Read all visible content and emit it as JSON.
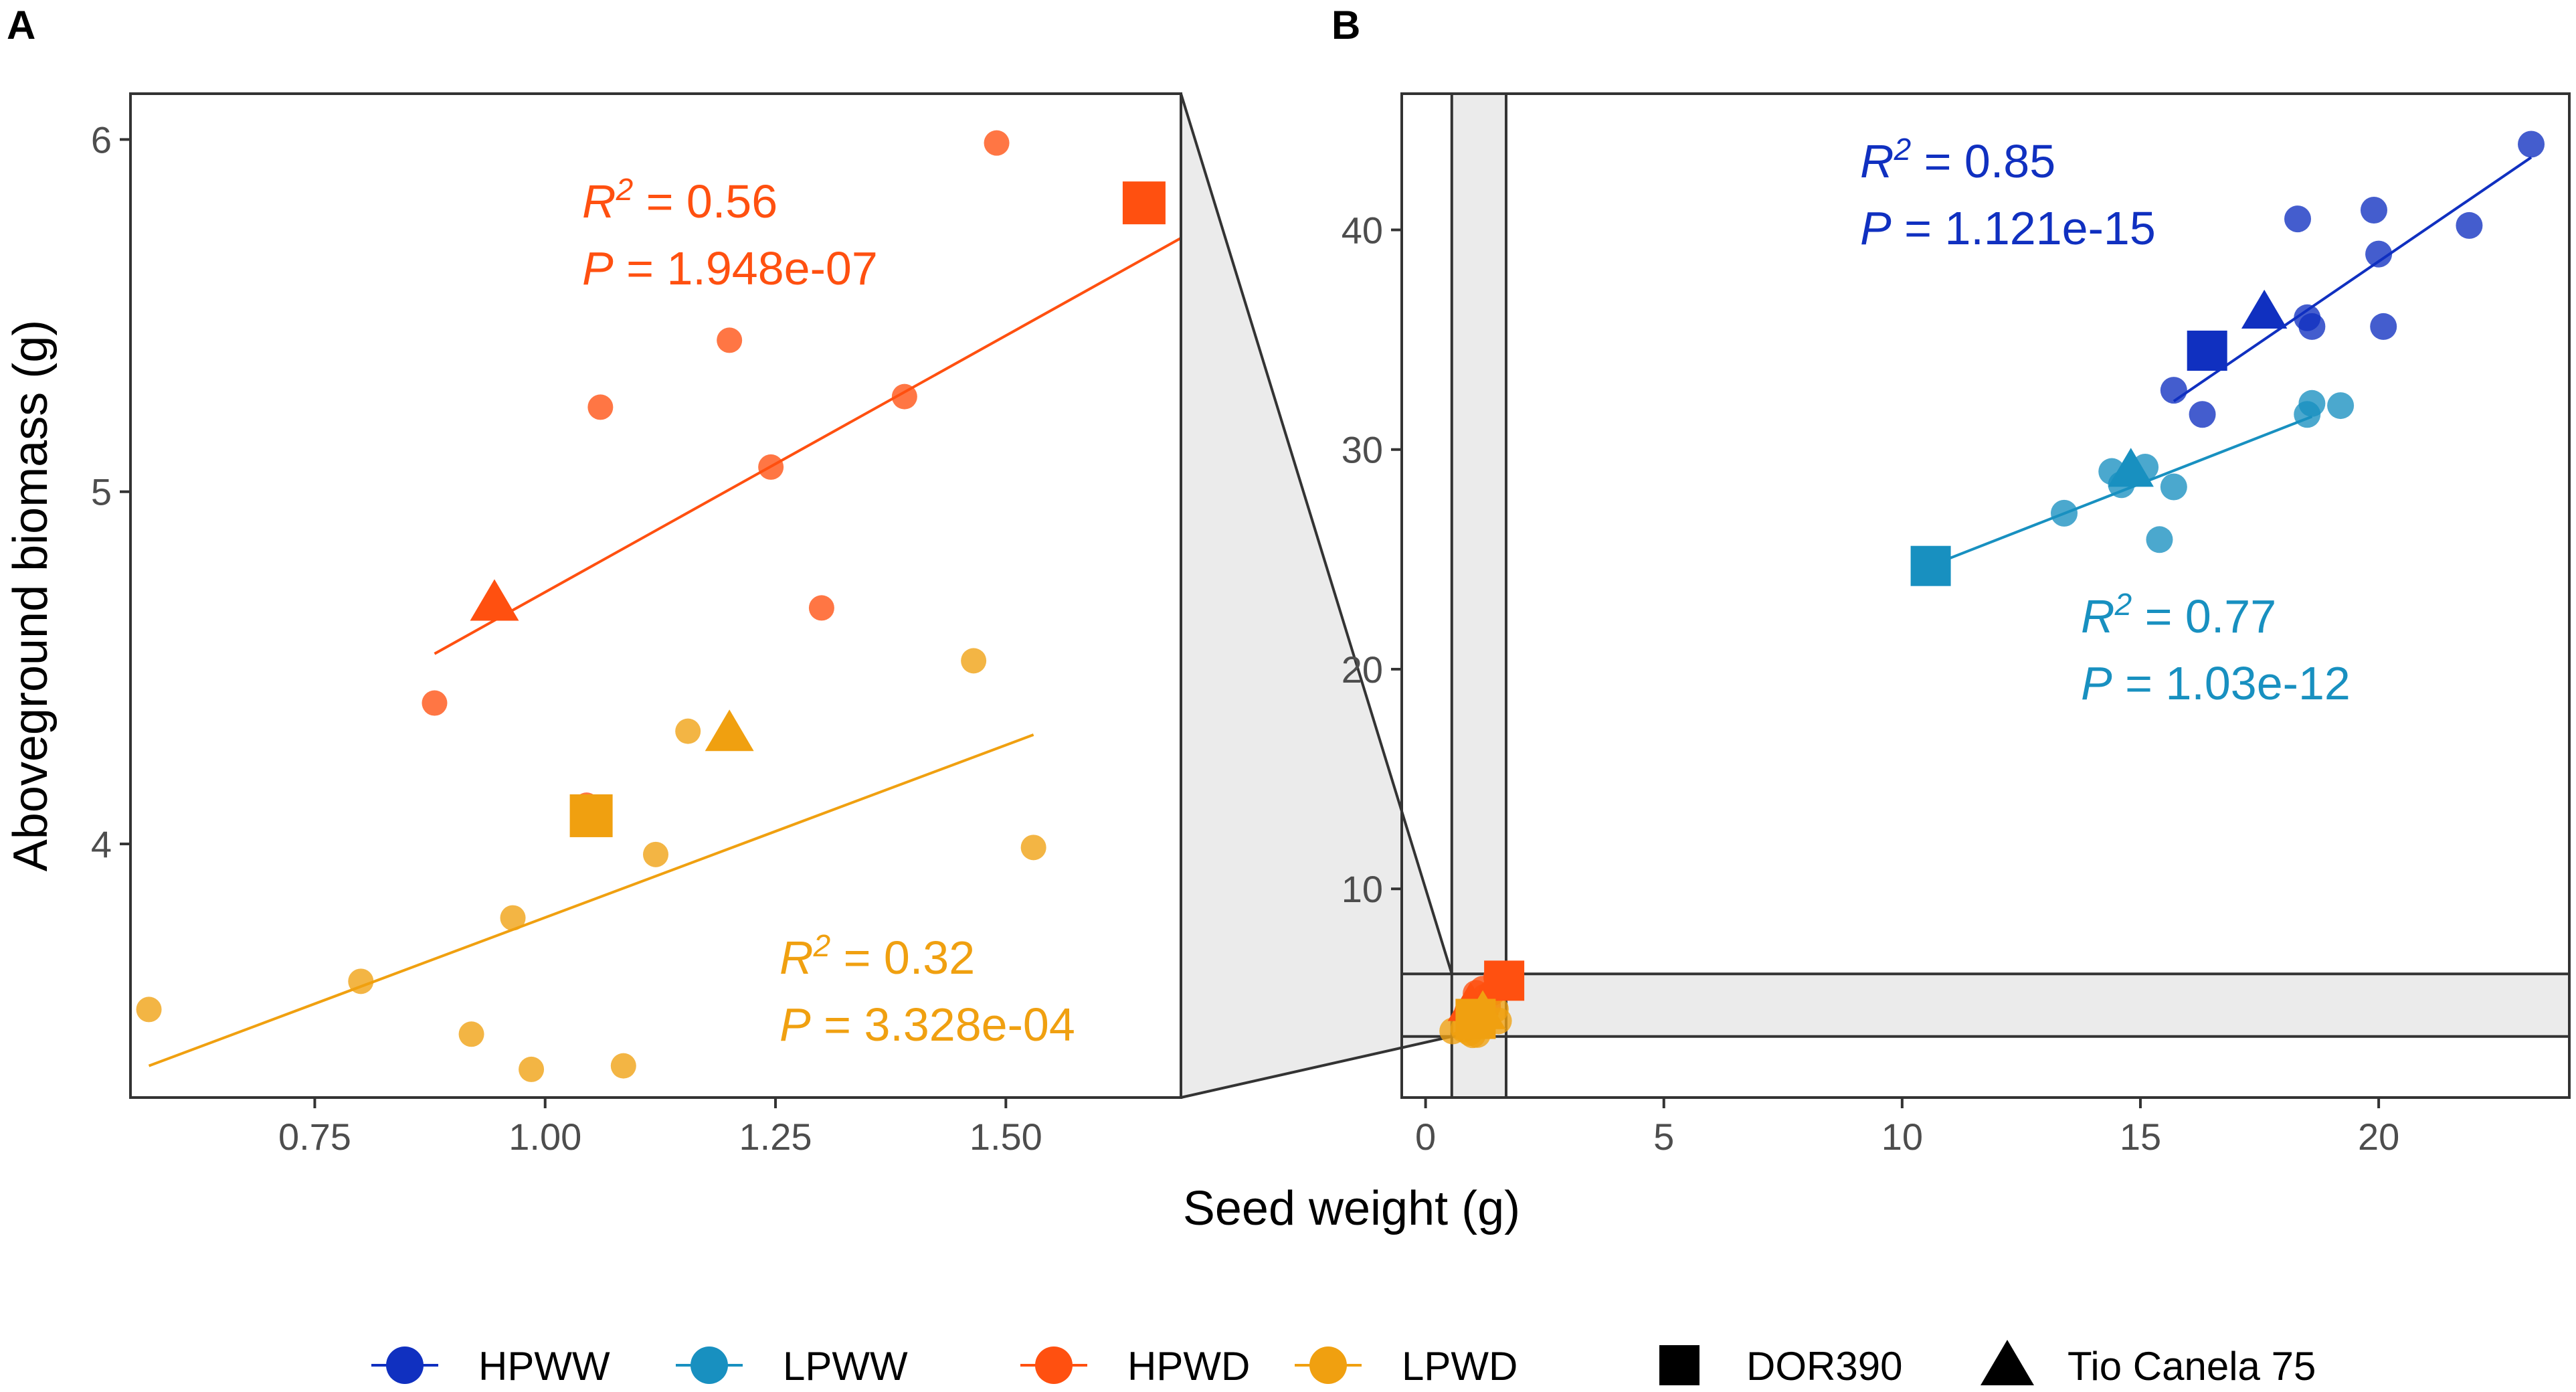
{
  "chart_data": [
    {
      "panel": "A",
      "type": "scatter",
      "xlabel": "Seed weight (g)",
      "ylabel": "Aboveground biomass (g)",
      "xlim": [
        0.55,
        1.69
      ],
      "ylim": [
        3.28,
        6.13
      ],
      "xticks": [
        0.75,
        1.0,
        1.25,
        1.5
      ],
      "xtick_labels": [
        "0.75",
        "1.00",
        "1.25",
        "1.50"
      ],
      "yticks": [
        4,
        5,
        6
      ],
      "ytick_labels": [
        "4",
        "5",
        "6"
      ],
      "series": [
        {
          "name": "HPWD",
          "color": "#FF5010",
          "points": [
            [
              0.88,
              4.4
            ],
            [
              1.06,
              5.24
            ],
            [
              1.2,
              5.43
            ],
            [
              1.245,
              5.07
            ],
            [
              1.3,
              4.67
            ],
            [
              1.39,
              5.27
            ],
            [
              1.49,
              5.99
            ],
            [
              1.045,
              4.11
            ]
          ],
          "fit": [
            [
              0.88,
              4.54
            ],
            [
              1.69,
              5.72
            ]
          ]
        },
        {
          "name": "LPWD",
          "color": "#F0A010",
          "points": [
            [
              0.57,
              3.53
            ],
            [
              0.8,
              3.61
            ],
            [
              0.92,
              3.46
            ],
            [
              0.965,
              3.79
            ],
            [
              0.985,
              3.36
            ],
            [
              1.085,
              3.37
            ],
            [
              1.12,
              3.97
            ],
            [
              1.155,
              4.32
            ],
            [
              1.465,
              4.52
            ],
            [
              1.53,
              3.99
            ]
          ],
          "fit": [
            [
              0.57,
              3.37
            ],
            [
              1.53,
              4.31
            ]
          ]
        }
      ],
      "markers": [
        {
          "shape": "square",
          "series": "HPWD",
          "x": 1.65,
          "y": 5.82
        },
        {
          "shape": "triangle",
          "series": "HPWD",
          "x": 0.945,
          "y": 4.68
        },
        {
          "shape": "square",
          "series": "LPWD",
          "x": 1.05,
          "y": 4.08
        },
        {
          "shape": "triangle",
          "series": "LPWD",
          "x": 1.2,
          "y": 4.31
        }
      ],
      "annotations": [
        {
          "series": "HPWD",
          "r2_label": "R",
          "r2_sup": "2",
          "r2_value": " = 0.56",
          "p_label": "P",
          "p_value": " = 1.948e-07"
        },
        {
          "series": "LPWD",
          "r2_label": "R",
          "r2_sup": "2",
          "r2_value": " = 0.32",
          "p_label": "P",
          "p_value": " = 3.328e-04"
        }
      ]
    },
    {
      "panel": "B",
      "type": "scatter",
      "xlabel": "Seed weight (g)",
      "ylabel": "Aboveground biomass (g)",
      "xlim": [
        -0.5,
        24.0
      ],
      "ylim": [
        0.5,
        46.2
      ],
      "xticks": [
        0,
        5,
        10,
        15,
        20
      ],
      "xtick_labels": [
        "0",
        "5",
        "10",
        "15",
        "20"
      ],
      "yticks": [
        10,
        20,
        30,
        40
      ],
      "ytick_labels": [
        "10",
        "20",
        "30",
        "40"
      ],
      "zoom_region": {
        "xmin": 0.55,
        "xmax": 1.69,
        "ymin": 3.28,
        "ymax": 6.13
      },
      "series": [
        {
          "name": "HPWW",
          "color": "#1030C0",
          "points": [
            [
              15.7,
              32.7
            ],
            [
              16.3,
              31.6
            ],
            [
              18.3,
              40.5
            ],
            [
              18.5,
              36.0
            ],
            [
              18.6,
              35.6
            ],
            [
              19.9,
              40.9
            ],
            [
              20.0,
              38.9
            ],
            [
              20.1,
              35.6
            ],
            [
              21.9,
              40.2
            ],
            [
              23.2,
              43.9
            ]
          ],
          "fit": [
            [
              15.7,
              32.2
            ],
            [
              23.2,
              43.3
            ]
          ]
        },
        {
          "name": "LPWW",
          "color": "#1890C0",
          "points": [
            [
              13.4,
              27.1
            ],
            [
              14.4,
              29.0
            ],
            [
              14.6,
              28.4
            ],
            [
              15.1,
              29.2
            ],
            [
              15.4,
              25.9
            ],
            [
              15.7,
              28.3
            ],
            [
              18.5,
              31.6
            ],
            [
              18.6,
              32.1
            ],
            [
              19.2,
              32.0
            ]
          ],
          "fit": [
            [
              10.7,
              24.8
            ],
            [
              18.6,
              31.5
            ]
          ]
        },
        {
          "name": "HPWD",
          "color": "#FF5010",
          "points": [
            [
              0.88,
              4.4
            ],
            [
              1.06,
              5.24
            ],
            [
              1.2,
              5.43
            ],
            [
              1.245,
              5.07
            ],
            [
              1.3,
              4.67
            ],
            [
              1.39,
              5.27
            ],
            [
              1.49,
              5.99
            ],
            [
              1.045,
              4.11
            ]
          ],
          "fit": [
            [
              0.88,
              4.54
            ],
            [
              1.69,
              5.72
            ]
          ]
        },
        {
          "name": "LPWD",
          "color": "#F0A010",
          "points": [
            [
              0.57,
              3.53
            ],
            [
              0.8,
              3.61
            ],
            [
              0.92,
              3.46
            ],
            [
              0.965,
              3.79
            ],
            [
              0.985,
              3.36
            ],
            [
              1.085,
              3.37
            ],
            [
              1.12,
              3.97
            ],
            [
              1.155,
              4.32
            ],
            [
              1.465,
              4.52
            ],
            [
              1.53,
              3.99
            ]
          ],
          "fit": [
            [
              0.57,
              3.37
            ],
            [
              1.53,
              4.31
            ]
          ]
        }
      ],
      "markers": [
        {
          "shape": "square",
          "series": "HPWW",
          "x": 16.4,
          "y": 34.5
        },
        {
          "shape": "triangle",
          "series": "HPWW",
          "x": 17.6,
          "y": 36.2
        },
        {
          "shape": "square",
          "series": "LPWW",
          "x": 10.6,
          "y": 24.7
        },
        {
          "shape": "triangle",
          "series": "LPWW",
          "x": 14.8,
          "y": 29.0
        },
        {
          "shape": "square",
          "series": "HPWD",
          "x": 1.65,
          "y": 5.82
        },
        {
          "shape": "triangle",
          "series": "HPWD",
          "x": 0.945,
          "y": 4.68
        },
        {
          "shape": "square",
          "series": "LPWD",
          "x": 1.05,
          "y": 4.08
        },
        {
          "shape": "triangle",
          "series": "LPWD",
          "x": 1.2,
          "y": 4.31
        }
      ],
      "annotations": [
        {
          "series": "HPWW",
          "r2_label": "R",
          "r2_sup": "2",
          "r2_value": " = 0.85",
          "p_label": "P",
          "p_value": " = 1.121e-15"
        },
        {
          "series": "LPWW",
          "r2_label": "R",
          "r2_sup": "2",
          "r2_value": " = 0.77",
          "p_label": "P",
          "p_value": " = 1.03e-12"
        }
      ]
    }
  ],
  "shared_xlabel": "Seed weight (g)",
  "legend": {
    "placement": "bottom",
    "series": [
      {
        "label": "HPWW",
        "color": "#1030C0"
      },
      {
        "label": "LPWW",
        "color": "#1890C0"
      },
      {
        "label": "HPWD",
        "color": "#FF5010"
      },
      {
        "label": "LPWD",
        "color": "#F0A010"
      }
    ],
    "shapes": [
      {
        "label": "DOR390",
        "shape": "square"
      },
      {
        "label": "Tio Canela 75",
        "shape": "triangle"
      }
    ]
  }
}
